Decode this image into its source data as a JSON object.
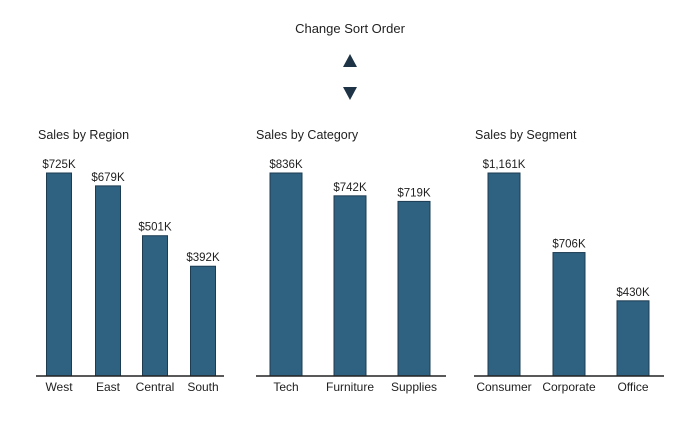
{
  "controls": {
    "title": "Change Sort Order",
    "up_icon": "triangle-up-icon",
    "down_icon": "triangle-down-icon"
  },
  "colors": {
    "bar": "#2f6180",
    "bar_outline": "#1c3c52",
    "axis": "#222222",
    "text": "#1f1f1f"
  },
  "chart_data": [
    {
      "type": "bar",
      "title": "Sales by Region",
      "categories": [
        "West",
        "East",
        "Central",
        "South"
      ],
      "values": [
        725,
        679,
        501,
        392
      ],
      "labels": [
        "$725K",
        "$679K",
        "$501K",
        "$392K"
      ],
      "unit": "K USD",
      "ylim": [
        0,
        725
      ],
      "grid": false
    },
    {
      "type": "bar",
      "title": "Sales by Category",
      "categories": [
        "Tech",
        "Furniture",
        "Supplies"
      ],
      "values": [
        836,
        742,
        719
      ],
      "labels": [
        "$836K",
        "$742K",
        "$719K"
      ],
      "unit": "K USD",
      "ylim": [
        0,
        836
      ],
      "grid": false
    },
    {
      "type": "bar",
      "title": "Sales by Segment",
      "categories": [
        "Consumer",
        "Corporate",
        "Office"
      ],
      "values": [
        1161,
        706,
        430
      ],
      "labels": [
        "$1,161K",
        "$706K",
        "$430K"
      ],
      "unit": "K USD",
      "ylim": [
        0,
        1161
      ],
      "grid": false
    }
  ]
}
